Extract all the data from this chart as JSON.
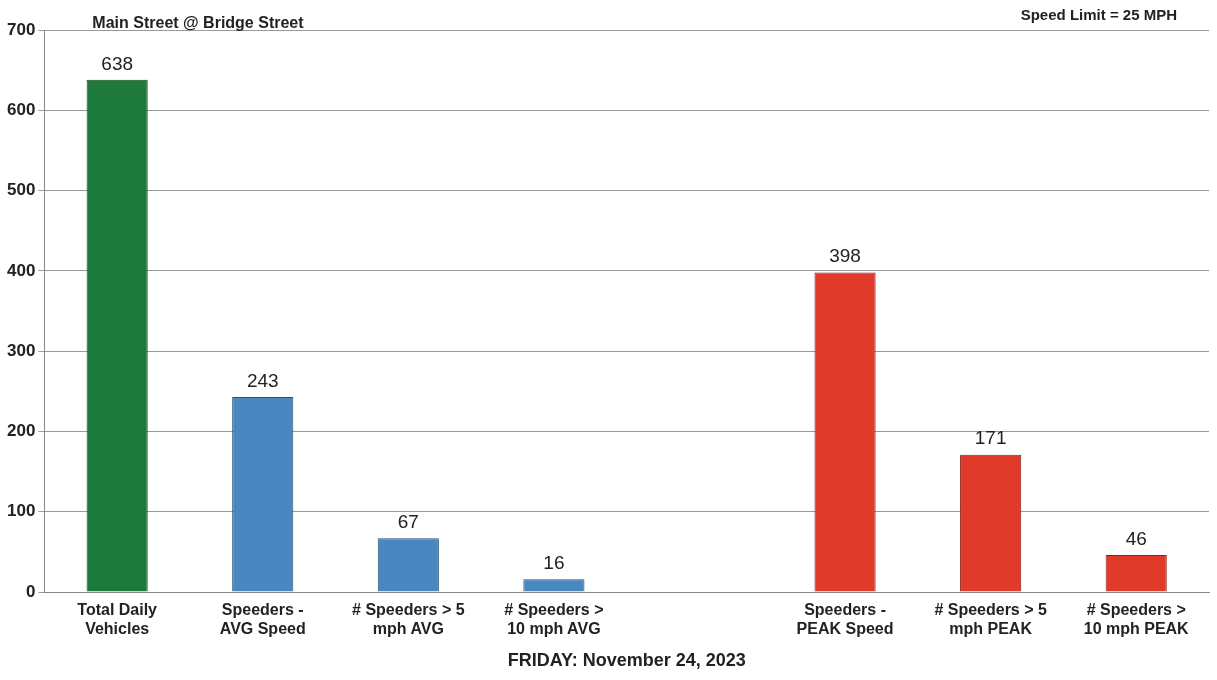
{
  "chart_data": {
    "type": "bar",
    "title": "Main Street @ Bridge Street",
    "xlabel": "FRIDAY: November 24, 2023",
    "annotations": [
      "Speed Limit = 25 MPH"
    ],
    "categories": [
      "Total Daily\nVehicles",
      "Speeders -\nAVG Speed",
      "# Speeders > 5\nmph AVG",
      "# Speeders >\n10 mph AVG",
      null,
      "Speeders -\nPEAK Speed",
      "# Speeders > 5\nmph PEAK",
      "# Speeders >\n10 mph PEAK"
    ],
    "values": [
      638,
      243,
      67,
      16,
      null,
      398,
      171,
      46
    ],
    "colors": [
      "#1e7a3a",
      "#4a86c0",
      "#4a86c0",
      "#4a86c0",
      "#4a86c0",
      "#e03a2a",
      "#e03a2a",
      "#e03a2a"
    ],
    "data_labels": true,
    "ylim": [
      0,
      700
    ],
    "yticks": [
      0,
      100,
      200,
      300,
      400,
      500,
      600,
      700
    ],
    "grid": "y",
    "legend": false
  }
}
